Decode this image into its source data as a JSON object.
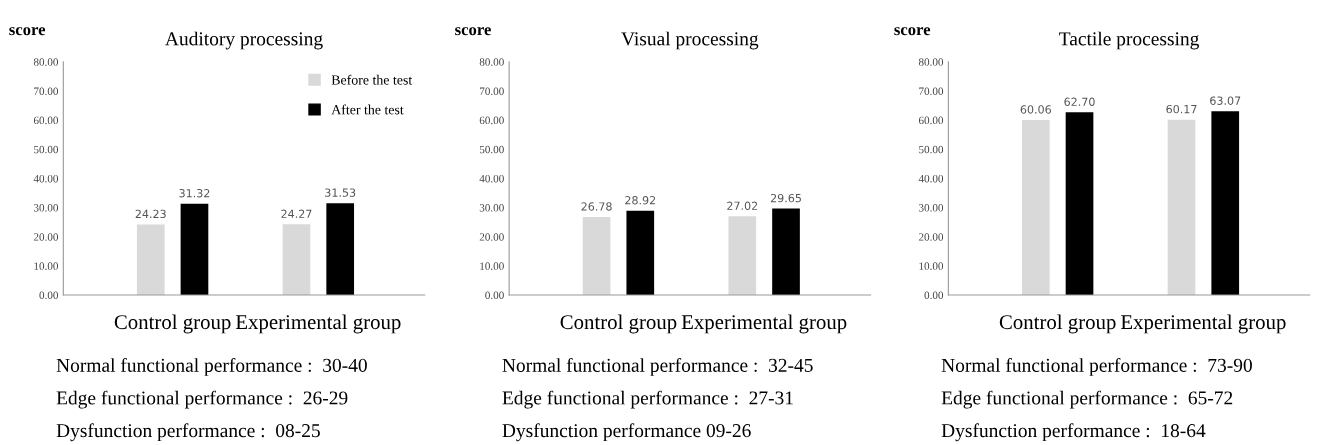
{
  "chart_data": [
    {
      "type": "bar",
      "title": "Auditory processing",
      "ylabel": "score",
      "categories": [
        "Control group",
        "Experimental group"
      ],
      "series": [
        {
          "name": "Before the test",
          "color": "#d9d9d9",
          "values": [
            24.23,
            24.27
          ]
        },
        {
          "name": "After the test",
          "color": "#000000",
          "values": [
            31.32,
            31.53
          ]
        }
      ],
      "ylim": [
        0,
        80
      ],
      "yticks": [
        {
          "value": 0,
          "label": "0.00"
        },
        {
          "value": 10,
          "label": "10.00"
        },
        {
          "value": 20,
          "label": "20.00"
        },
        {
          "value": 30,
          "label": "30.00"
        },
        {
          "value": 40,
          "label": "40.00"
        },
        {
          "value": 50,
          "label": "50.00"
        },
        {
          "value": 60,
          "label": "60.00"
        },
        {
          "value": 70,
          "label": "70.00"
        },
        {
          "value": 80,
          "label": "80.00"
        }
      ],
      "data_labels": true,
      "legend": "top right",
      "annotations": [
        "Normal functional performance :  30-40",
        "Edge functional performance :  26-29",
        "Dysfunction performance :  08-25"
      ]
    },
    {
      "type": "bar",
      "title": "Visual processing",
      "ylabel": "score",
      "categories": [
        "Control group",
        "Experimental group"
      ],
      "series": [
        {
          "color": "#d9d9d9",
          "values": [
            26.78,
            27.02
          ]
        },
        {
          "color": "#000000",
          "values": [
            28.92,
            29.65
          ]
        }
      ],
      "ylim": [
        0,
        80
      ],
      "yticks": [
        {
          "value": 0,
          "label": "0.00"
        },
        {
          "value": 10,
          "label": "10.00"
        },
        {
          "value": 20,
          "label": "20.00"
        },
        {
          "value": 30,
          "label": "30.00"
        },
        {
          "value": 40,
          "label": "40.00"
        },
        {
          "value": 50,
          "label": "50.00"
        },
        {
          "value": 60,
          "label": "60.00"
        },
        {
          "value": 70,
          "label": "70.00"
        },
        {
          "value": 80,
          "label": "80.00"
        }
      ],
      "data_labels": true,
      "annotations": [
        "Normal functional performance :  32-45",
        "Edge functional performance :  27-31",
        "Dysfunction performance 09-26"
      ]
    },
    {
      "type": "bar",
      "title": "Tactile processing",
      "ylabel": "score",
      "categories": [
        "Control group",
        "Experimental group"
      ],
      "series": [
        {
          "color": "#d9d9d9",
          "values": [
            60.06,
            60.17
          ]
        },
        {
          "color": "#000000",
          "values": [
            62.7,
            63.07
          ],
          "value_labels": [
            "62.70",
            "63.07"
          ]
        }
      ],
      "ylim": [
        0,
        80
      ],
      "yticks": [
        {
          "value": 0,
          "label": "0.00"
        },
        {
          "value": 10,
          "label": "10.00"
        },
        {
          "value": 20,
          "label": "20.00"
        },
        {
          "value": 30,
          "label": "30.00"
        },
        {
          "value": 40,
          "label": "40.00"
        },
        {
          "value": 50,
          "label": "50.00"
        },
        {
          "value": 60,
          "label": "60.00"
        },
        {
          "value": 70,
          "label": "70.00"
        },
        {
          "value": 80,
          "label": "80.00"
        }
      ],
      "data_labels": true,
      "annotations": [
        "Normal functional performance :  73-90",
        "Edge functional performance :  65-72",
        "Dysfunction performance :  18-64"
      ]
    }
  ]
}
